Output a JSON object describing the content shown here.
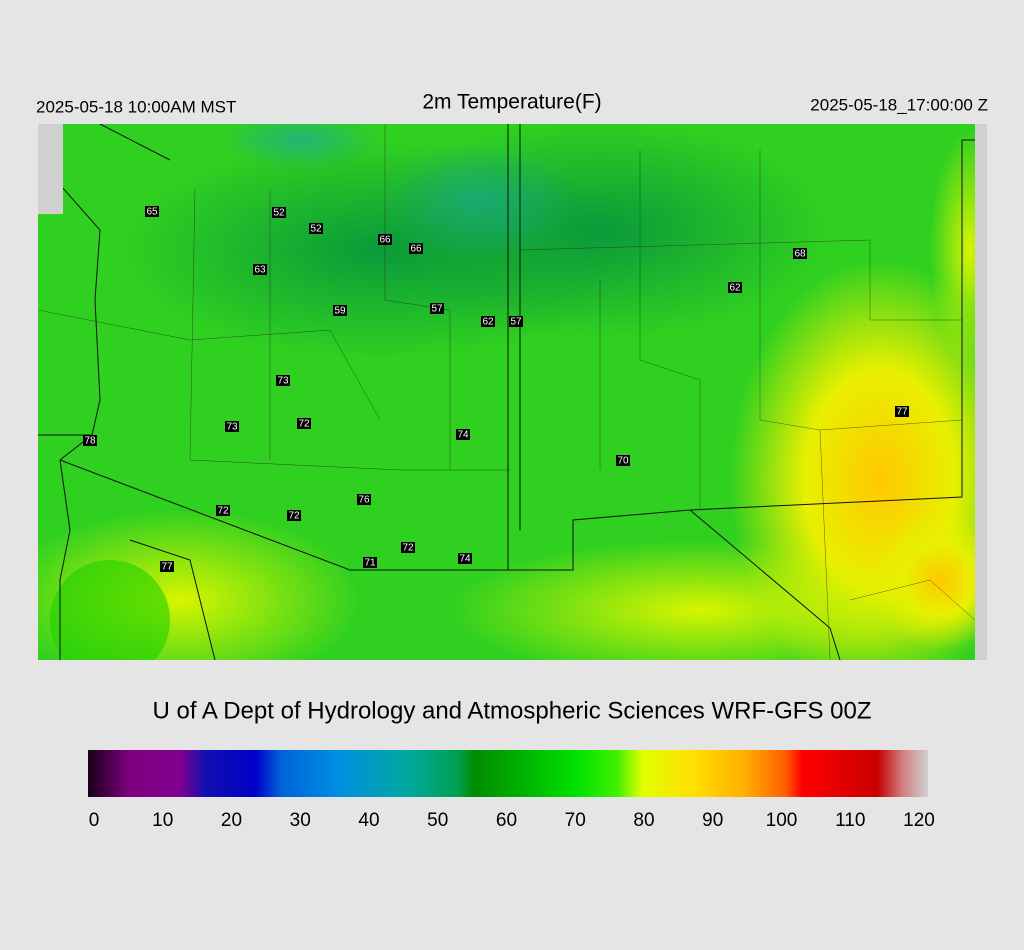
{
  "header": {
    "left": "2025-05-18 10:00AM MST",
    "title": "2m Temperature(F)",
    "right": "2025-05-18_17:00:00 Z"
  },
  "stations": [
    65,
    52,
    52,
    66,
    66,
    63,
    68,
    62,
    59,
    57,
    62,
    57,
    73,
    77,
    73,
    72,
    78,
    74,
    70,
    76,
    72,
    72,
    72,
    71,
    74,
    77
  ],
  "footer": "U of A Dept of Hydrology and Atmospheric Sciences WRF-GFS 00Z",
  "colorbar": {
    "ticks": [
      0,
      10,
      20,
      30,
      40,
      50,
      60,
      70,
      80,
      90,
      100,
      110,
      120
    ]
  }
}
